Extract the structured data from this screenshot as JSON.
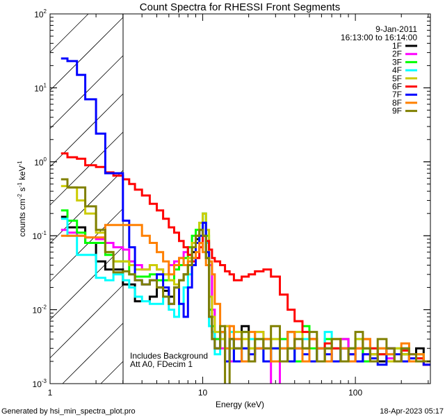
{
  "chart_data": {
    "type": "line",
    "title": "Count Spectra for RHESSI Front Segments",
    "xlabel": "Energy (keV)",
    "ylabel": "counts cm",
    "ylabel_parts": [
      "counts cm",
      "-2",
      " s",
      "-1",
      " keV",
      "-1"
    ],
    "xscale": "log",
    "yscale": "log",
    "xlim": [
      1,
      310
    ],
    "ylim": [
      0.001,
      100
    ],
    "x_ticks": [
      {
        "value": 1,
        "label": "1"
      },
      {
        "value": 10,
        "label": "10"
      },
      {
        "value": 100,
        "label": "100"
      }
    ],
    "y_ticks": [
      {
        "value": 0.001,
        "base": "10",
        "exp": "-3"
      },
      {
        "value": 0.01,
        "base": "10",
        "exp": "-2"
      },
      {
        "value": 0.1,
        "base": "10",
        "exp": "-1"
      },
      {
        "value": 1,
        "base": "10",
        "exp": "0"
      },
      {
        "value": 10,
        "base": "10",
        "exp": "1"
      },
      {
        "value": 100,
        "base": "10",
        "exp": "2"
      }
    ],
    "shaded_region_keV": [
      1,
      3.0
    ],
    "legend_position": "top-right",
    "legend_header": [
      "9-Jan-2011",
      "16:13:00 to 16:14:00"
    ],
    "annotations": [
      "Includes Background",
      "Att A0, FDecim 1"
    ],
    "energy_edges": [
      1.18,
      1.3,
      1.5,
      1.7,
      2.0,
      2.3,
      2.6,
      3.0,
      3.3,
      3.6,
      4.0,
      4.5,
      5.0,
      5.5,
      6.0,
      6.5,
      7.0,
      7.5,
      8.0,
      8.5,
      9.0,
      9.5,
      10.0,
      10.5,
      11.0,
      11.5,
      12.0,
      13,
      14,
      15,
      16,
      18,
      20,
      22,
      25,
      28,
      32,
      36,
      40,
      45,
      50,
      56,
      63,
      70,
      80,
      90,
      100,
      112,
      125,
      140,
      160,
      180,
      200,
      225,
      250,
      280,
      310
    ],
    "series": [
      {
        "name": "1F",
        "color": "#000000",
        "values": [
          0.18,
          0.13,
          0.13,
          0.08,
          0.045,
          0.035,
          0.035,
          0.022,
          0.022,
          0.013,
          0.013,
          0.015,
          0.02,
          0.018,
          0.015,
          0.02,
          0.025,
          0.03,
          0.04,
          0.06,
          0.09,
          0.12,
          0.1,
          0.05,
          0.008,
          0.005,
          0.003,
          0.005,
          0.002,
          0.004,
          0.003,
          0.006,
          0.002,
          0.003,
          0.004,
          0.002,
          0.003,
          0.005,
          0.002,
          0.003,
          0.004,
          0.002,
          0.003,
          0.002,
          0.004,
          0.003,
          0.002,
          0.003,
          0.0025,
          0.002,
          0.003,
          0.002,
          0.0025,
          0.002,
          0.003,
          0.002
        ]
      },
      {
        "name": "2F",
        "color": "#ff00ff",
        "values": [
          0.12,
          0.11,
          0.1,
          0.095,
          0.09,
          0.08,
          0.07,
          0.065,
          0.045,
          0.04,
          0.035,
          0.04,
          0.035,
          0.03,
          0.04,
          0.045,
          0.05,
          0.06,
          0.07,
          0.08,
          0.1,
          0.12,
          0.15,
          0.08,
          0.04,
          0.01,
          0.004,
          0.003,
          0.006,
          0.002,
          0.004,
          0.003,
          0.002,
          0.005,
          0.003,
          0.0009,
          0.004,
          0.002,
          0.003,
          0.002,
          0.004,
          0.003,
          0.002,
          0.003,
          0.004,
          0.002,
          0.003,
          0.0025,
          0.002,
          0.003,
          0.0022,
          0.002,
          0.003,
          0.0025,
          0.002,
          0.0018
        ]
      },
      {
        "name": "3F",
        "color": "#00ff00",
        "values": [
          0.22,
          0.16,
          0.11,
          0.08,
          0.08,
          0.055,
          0.045,
          0.045,
          0.03,
          0.028,
          0.028,
          0.03,
          0.025,
          0.025,
          0.025,
          0.035,
          0.04,
          0.05,
          0.07,
          0.1,
          0.12,
          0.15,
          0.2,
          0.1,
          0.01,
          0.006,
          0.004,
          0.005,
          0.003,
          0.004,
          0.002,
          0.005,
          0.003,
          0.004,
          0.002,
          0.003,
          0.004,
          0.003,
          0.002,
          0.006,
          0.003,
          0.002,
          0.004,
          0.003,
          0.002,
          0.003,
          0.004,
          0.002,
          0.003,
          0.0025,
          0.002,
          0.003,
          0.0025,
          0.002,
          0.0022,
          0.002
        ]
      },
      {
        "name": "4F",
        "color": "#00ffff",
        "values": [
          0.17,
          0.1,
          0.055,
          0.055,
          0.027,
          0.025,
          0.03,
          0.025,
          0.02,
          0.015,
          0.013,
          0.012,
          0.012,
          0.015,
          0.01,
          0.008,
          0.012,
          0.02,
          0.03,
          0.05,
          0.08,
          0.12,
          0.2,
          0.08,
          0.006,
          0.005,
          0.0025,
          0.004,
          0.003,
          0.005,
          0.002,
          0.003,
          0.004,
          0.003,
          0.002,
          0.004,
          0.003,
          0.002,
          0.003,
          0.004,
          0.002,
          0.003,
          0.005,
          0.002,
          0.003,
          0.002,
          0.004,
          0.003,
          0.002,
          0.003,
          0.0025,
          0.002,
          0.003,
          0.002,
          0.0025,
          0.002
        ]
      },
      {
        "name": "5F",
        "color": "#cccc00",
        "values": [
          0.47,
          0.45,
          0.3,
          0.2,
          0.11,
          0.06,
          0.045,
          0.045,
          0.04,
          0.035,
          0.035,
          0.04,
          0.035,
          0.03,
          0.025,
          0.022,
          0.025,
          0.03,
          0.05,
          0.08,
          0.1,
          0.15,
          0.2,
          0.12,
          0.015,
          0.008,
          0.005,
          0.004,
          0.006,
          0.003,
          0.005,
          0.004,
          0.003,
          0.005,
          0.003,
          0.004,
          0.002,
          0.003,
          0.005,
          0.003,
          0.004,
          0.002,
          0.003,
          0.004,
          0.003,
          0.002,
          0.004,
          0.003,
          0.0025,
          0.003,
          0.002,
          0.003,
          0.0025,
          0.002,
          0.0025,
          0.002
        ]
      },
      {
        "name": "6F",
        "color": "#ff0000",
        "values": [
          1.3,
          1.15,
          1.1,
          0.9,
          0.85,
          0.72,
          0.65,
          0.58,
          0.5,
          0.42,
          0.35,
          0.27,
          0.22,
          0.17,
          0.13,
          0.11,
          0.085,
          0.07,
          0.055,
          0.045,
          0.05,
          0.07,
          0.1,
          0.085,
          0.065,
          0.05,
          0.045,
          0.04,
          0.033,
          0.03,
          0.025,
          0.028,
          0.03,
          0.033,
          0.035,
          0.028,
          0.016,
          0.01,
          0.007,
          0.005,
          0.004,
          0.003,
          0.0035,
          0.003,
          0.003,
          0.0025,
          0.003,
          0.004,
          0.003,
          0.0025,
          0.003,
          0.002,
          0.0028,
          0.002,
          0.0022,
          0.0018
        ]
      },
      {
        "name": "7F",
        "color": "#0000ff",
        "values": [
          25,
          23,
          15,
          7,
          2.4,
          0.7,
          0.7,
          0.16,
          0.07,
          0.025,
          0.022,
          0.025,
          0.03,
          0.02,
          0.012,
          0.02,
          0.012,
          0.008,
          0.02,
          0.04,
          0.08,
          0.1,
          0.15,
          0.06,
          0.008,
          0.004,
          0.003,
          0.005,
          0.002,
          0.004,
          0.002,
          0.003,
          0.0025,
          0.003,
          0.002,
          0.003,
          0.002,
          0.002,
          0.003,
          0.0025,
          0.002,
          0.003,
          0.0025,
          0.002,
          0.003,
          0.0025,
          0.002,
          0.0025,
          0.0022,
          0.0018,
          0.003,
          0.0025,
          0.002,
          0.0022,
          0.002,
          0.0018
        ]
      },
      {
        "name": "8F",
        "color": "#ff8000",
        "values": [
          0.1,
          0.1,
          0.1,
          0.095,
          0.095,
          0.14,
          0.14,
          0.14,
          0.14,
          0.14,
          0.1,
          0.08,
          0.06,
          0.045,
          0.03,
          0.04,
          0.05,
          0.04,
          0.045,
          0.05,
          0.06,
          0.08,
          0.06,
          0.04,
          0.045,
          0.03,
          0.012,
          0.005,
          0.003,
          0.006,
          0.004,
          0.002,
          0.005,
          0.003,
          0.004,
          0.002,
          0.003,
          0.005,
          0.003,
          0.002,
          0.004,
          0.003,
          0.002,
          0.004,
          0.003,
          0.002,
          0.003,
          0.004,
          0.002,
          0.003,
          0.0025,
          0.002,
          0.0035,
          0.002,
          0.0025,
          0.002
        ]
      },
      {
        "name": "9F",
        "color": "#808000",
        "values": [
          0.58,
          0.45,
          0.45,
          0.25,
          0.12,
          0.06,
          0.032,
          0.033,
          0.03,
          0.025,
          0.022,
          0.025,
          0.02,
          0.015,
          0.012,
          0.02,
          0.025,
          0.03,
          0.04,
          0.07,
          0.1,
          0.12,
          0.1,
          0.05,
          0.008,
          0.004,
          0.003,
          0.006,
          0.0008,
          0.004,
          0.003,
          0.005,
          0.002,
          0.004,
          0.003,
          0.006,
          0.002,
          0.003,
          0.004,
          0.003,
          0.005,
          0.002,
          0.003,
          0.004,
          0.002,
          0.003,
          0.005,
          0.003,
          0.002,
          0.004,
          0.003,
          0.002,
          0.003,
          0.0025,
          0.002,
          0.002
        ]
      }
    ]
  },
  "footer": {
    "left": "Generated by hsi_min_spectra_plot.pro",
    "right": "18-Apr-2023 05:17"
  }
}
